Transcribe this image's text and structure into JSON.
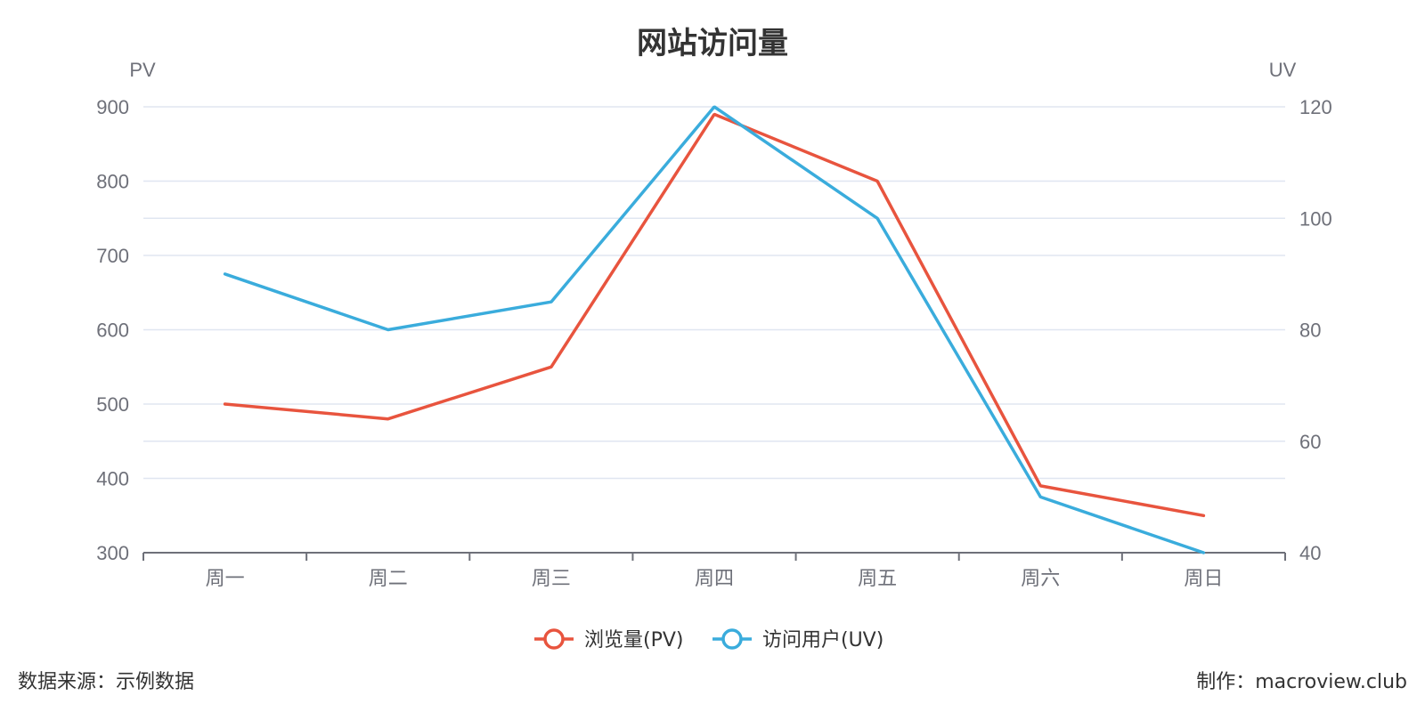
{
  "chart_data": {
    "type": "line",
    "title": "网站访问量",
    "categories": [
      "周一",
      "周二",
      "周三",
      "周四",
      "周五",
      "周六",
      "周日"
    ],
    "series": [
      {
        "name": "浏览量(PV)",
        "axis": "left",
        "color": "#e8543e",
        "values": [
          500,
          480,
          550,
          890,
          800,
          390,
          350
        ]
      },
      {
        "name": "访问用户(UV)",
        "axis": "right",
        "color": "#3aacdc",
        "values": [
          90,
          80,
          85,
          120,
          100,
          50,
          40
        ]
      }
    ],
    "y_left": {
      "label": "PV",
      "range": [
        300,
        900
      ],
      "ticks": [
        "300",
        "400",
        "500",
        "600",
        "700",
        "800",
        "900"
      ]
    },
    "y_right": {
      "label": "UV",
      "range": [
        40,
        120
      ],
      "ticks": [
        "40",
        "60",
        "80",
        "100",
        "120"
      ]
    },
    "grid": true,
    "legend": "bottom-center"
  },
  "footer": {
    "source": "数据来源：示例数据",
    "credit": "制作：macroview.club"
  }
}
